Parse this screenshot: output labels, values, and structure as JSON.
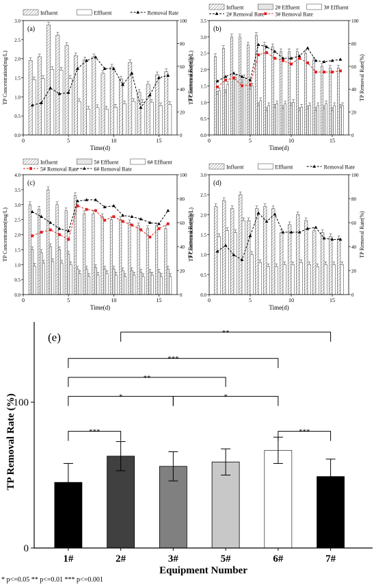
{
  "chart_data": [
    {
      "panel": "(a)",
      "type": "bar+line",
      "xlabel": "Time(d)",
      "ylabel": "TP Concentration(mg/L)",
      "y2label": "TP Removal Rate(%)",
      "xlim": [
        0,
        17
      ],
      "ylim": [
        0,
        3.0
      ],
      "y2lim": [
        0,
        100
      ],
      "xticks": [
        0,
        5,
        10,
        15
      ],
      "yticks": [
        0,
        0.5,
        1.0,
        1.5,
        2.0,
        2.5,
        3.0
      ],
      "y2ticks": [
        0,
        20,
        40,
        60,
        80,
        100
      ],
      "legend": [
        "Influent",
        "Effluent",
        "Removal Rate"
      ],
      "x": [
        1,
        2,
        3,
        4,
        5,
        6,
        7,
        8,
        9,
        10,
        11,
        12,
        13,
        14,
        15,
        16
      ],
      "series": [
        {
          "name": "Influent",
          "kind": "bar",
          "values": [
            1.95,
            2.05,
            2.88,
            2.62,
            2.35,
            2.08,
            1.97,
            2.05,
            1.62,
            1.78,
            1.47,
            1.9,
            1.12,
            1.33,
            1.58,
            1.66
          ]
        },
        {
          "name": "Effluent",
          "kind": "bar",
          "values": [
            1.45,
            1.48,
            1.72,
            1.7,
            1.48,
            0.88,
            0.68,
            0.72,
            0.68,
            0.73,
            0.82,
            0.88,
            0.85,
            0.86,
            0.77,
            0.8
          ]
        },
        {
          "name": "Removal Rate",
          "kind": "line",
          "axis": "right",
          "values": [
            26,
            28,
            41,
            36,
            37,
            58,
            65,
            68,
            58,
            58,
            44,
            54,
            24,
            35,
            50,
            52
          ]
        }
      ]
    },
    {
      "panel": "(b)",
      "type": "bar+line",
      "xlabel": "Time(d)",
      "ylabel": "TP Concentration(mg/L)",
      "y2label": "TP Removal Rate(%)",
      "xlim": [
        0,
        17
      ],
      "ylim": [
        0,
        3.5
      ],
      "y2lim": [
        0,
        100
      ],
      "xticks": [
        0,
        5,
        10,
        15
      ],
      "yticks": [
        0,
        0.5,
        1.0,
        1.5,
        2.0,
        2.5,
        3.0,
        3.5
      ],
      "y2ticks": [
        0,
        20,
        40,
        60,
        80,
        100
      ],
      "legend": [
        "Influent",
        "2# Effluent",
        "3# Effluent",
        "2# Removal Rate",
        "3# Removal Rate"
      ],
      "x": [
        1,
        2,
        3,
        4,
        5,
        6,
        7,
        8,
        9,
        10,
        11,
        12,
        13,
        14,
        15,
        16
      ],
      "series": [
        {
          "name": "Influent",
          "kind": "bar",
          "values": [
            2.4,
            2.65,
            3.0,
            3.0,
            2.75,
            3.05,
            2.75,
            2.7,
            2.55,
            2.55,
            2.55,
            2.5,
            2.3,
            2.1,
            2.05,
            2.05
          ]
        },
        {
          "name": "2# Effluent",
          "kind": "bar",
          "values": [
            1.25,
            1.3,
            1.7,
            1.6,
            1.4,
            0.9,
            0.75,
            0.85,
            0.8,
            0.9,
            0.75,
            0.8,
            0.75,
            0.8,
            0.75,
            0.85
          ]
        },
        {
          "name": "3# Effluent",
          "kind": "bar",
          "values": [
            1.35,
            1.55,
            1.75,
            1.75,
            1.5,
            1.05,
            0.9,
            0.95,
            0.95,
            1.0,
            0.85,
            0.9,
            0.9,
            0.95,
            0.9,
            0.9
          ]
        },
        {
          "name": "2# Removal Rate",
          "kind": "line",
          "axis": "right",
          "values": [
            47,
            51,
            54,
            51,
            48,
            79,
            77,
            73,
            67,
            67,
            69,
            76,
            65,
            64,
            65,
            66
          ]
        },
        {
          "name": "3# Removal Rate",
          "kind": "line",
          "axis": "right",
          "values": [
            42,
            48,
            50,
            43,
            44,
            70,
            72,
            67,
            65,
            62,
            67,
            63,
            55,
            55,
            55,
            56
          ]
        }
      ]
    },
    {
      "panel": "(c)",
      "type": "bar+line",
      "xlabel": "Time(d)",
      "ylabel": "TP Concentration(mg/L)",
      "y2label": "TP Removal Rate(%)",
      "xlim": [
        0,
        17
      ],
      "ylim": [
        0,
        4.0
      ],
      "y2lim": [
        0,
        100
      ],
      "xticks": [
        0,
        5,
        10,
        15
      ],
      "yticks": [
        0,
        0.5,
        1.0,
        1.5,
        2.0,
        2.5,
        3.0,
        3.5,
        4.0
      ],
      "y2ticks": [
        0,
        20,
        40,
        60,
        80,
        100
      ],
      "legend": [
        "Influent",
        "5# Effluent",
        "6# Effluent",
        "5# Removal Rate",
        "6# Removal Rate"
      ],
      "x": [
        1,
        2,
        3,
        4,
        5,
        6,
        7,
        8,
        9,
        10,
        11,
        12,
        13,
        14,
        15,
        16
      ],
      "series": [
        {
          "name": "Influent",
          "kind": "bar",
          "values": [
            3.0,
            2.85,
            3.5,
            3.0,
            2.8,
            3.3,
            2.7,
            2.7,
            2.6,
            2.5,
            2.5,
            2.4,
            2.3,
            2.2,
            2.3,
            2.2
          ]
        },
        {
          "name": "5# Effluent",
          "kind": "bar",
          "values": [
            1.5,
            1.4,
            1.6,
            1.5,
            1.35,
            0.85,
            0.85,
            0.9,
            0.85,
            0.85,
            0.8,
            0.8,
            0.75,
            0.75,
            0.75,
            0.85
          ]
        },
        {
          "name": "6# Effluent",
          "kind": "bar",
          "values": [
            0.95,
            1.05,
            1.1,
            1.05,
            1.0,
            0.7,
            0.6,
            0.65,
            0.7,
            0.65,
            0.6,
            0.65,
            0.6,
            0.65,
            0.6,
            0.6
          ]
        },
        {
          "name": "5# Removal Rate",
          "kind": "line",
          "axis": "right",
          "values": [
            49,
            52,
            54,
            50,
            46,
            74,
            71,
            70,
            62,
            65,
            61,
            58,
            54,
            48,
            55,
            59
          ]
        },
        {
          "name": "6# Removal Rate",
          "kind": "line",
          "axis": "right",
          "values": [
            69,
            65,
            60,
            55,
            53,
            78,
            79,
            79,
            73,
            74,
            66,
            65,
            63,
            60,
            59,
            70
          ]
        }
      ]
    },
    {
      "panel": "(d)",
      "type": "bar+line",
      "xlabel": "Time(d)",
      "ylabel": "TP Concentration(mg/L)",
      "y2label": "TP Removal Rate(%)",
      "xlim": [
        0,
        17
      ],
      "ylim": [
        0,
        3.0
      ],
      "y2lim": [
        0,
        100
      ],
      "xticks": [
        0,
        5,
        10,
        15
      ],
      "yticks": [
        0,
        0.5,
        1.0,
        1.5,
        2.0,
        2.5,
        3.0
      ],
      "y2ticks": [
        0,
        20,
        40,
        60,
        80,
        100
      ],
      "legend": [
        "Influent",
        "Effluent",
        "Removal Rate"
      ],
      "x": [
        1,
        2,
        3,
        4,
        5,
        6,
        7,
        8,
        9,
        10,
        11,
        12,
        13,
        14,
        15,
        16
      ],
      "series": [
        {
          "name": "Influent",
          "kind": "bar",
          "values": [
            2.2,
            2.35,
            2.15,
            2.5,
            1.85,
            2.15,
            2.2,
            2.15,
            1.55,
            1.75,
            2.0,
            1.85,
            1.6,
            1.55,
            1.45,
            1.4
          ]
        },
        {
          "name": "Effluent",
          "kind": "bar",
          "values": [
            1.45,
            1.6,
            1.55,
            1.85,
            1.0,
            0.8,
            0.7,
            0.7,
            0.75,
            0.75,
            0.8,
            0.75,
            0.7,
            0.75,
            0.75,
            0.75
          ]
        },
        {
          "name": "Removal Rate",
          "kind": "line",
          "axis": "right",
          "values": [
            36,
            41,
            33,
            29,
            49,
            68,
            61,
            67,
            52,
            52,
            52,
            55,
            56,
            47,
            46,
            46
          ]
        }
      ]
    },
    {
      "panel": "(e)",
      "type": "bar",
      "xlabel": "Equipment Number",
      "ylabel": "TP Removal Rate (%)",
      "ylim": [
        0,
        155
      ],
      "yticks": [
        0,
        100
      ],
      "categories": [
        "1#",
        "2#",
        "3#",
        "5#",
        "6#",
        "7#"
      ],
      "values": [
        45,
        63,
        56,
        59,
        67,
        49
      ],
      "errors": [
        13,
        10,
        10,
        9,
        9,
        12
      ],
      "colors": [
        "#000000",
        "#404040",
        "#808080",
        "#c8c8c8",
        "#ffffff",
        "#000000"
      ],
      "significance": [
        {
          "from": "1#",
          "to": "2#",
          "label": "***"
        },
        {
          "from": "1#",
          "to": "3#",
          "label": "*"
        },
        {
          "from": "1#",
          "to": "5#",
          "label": "**"
        },
        {
          "from": "1#",
          "to": "6#",
          "label": "***"
        },
        {
          "from": "2#",
          "to": "7#",
          "label": "**"
        },
        {
          "from": "3#",
          "to": "6#",
          "label": "*"
        },
        {
          "from": "6#",
          "to": "7#",
          "label": "***"
        }
      ],
      "footnote": "* p<=0.05   ** p<=0.01   *** p<=0.001"
    }
  ]
}
